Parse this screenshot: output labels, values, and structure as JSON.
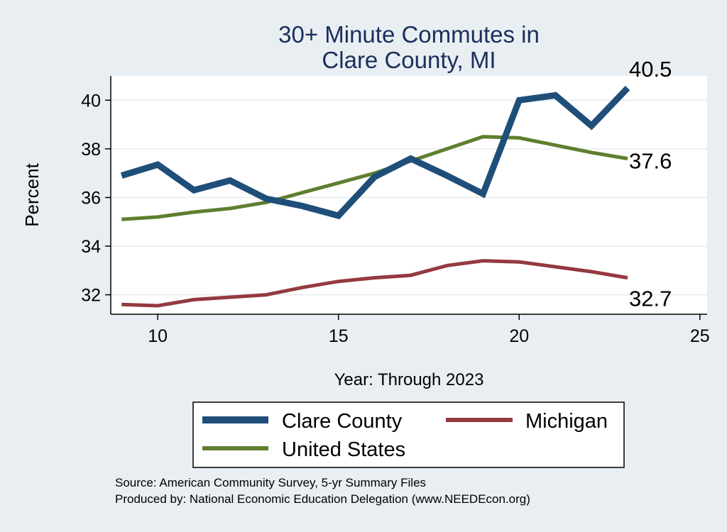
{
  "chart_data": {
    "type": "line",
    "title": [
      "30+ Minute Commutes in",
      "Clare County, MI"
    ],
    "xlabel": "Year: Through 2023",
    "ylabel": "Percent",
    "xlim": [
      8.7,
      25.2
    ],
    "ylim": [
      31.2,
      41.0
    ],
    "xticks": [
      10,
      15,
      20,
      25
    ],
    "yticks": [
      32,
      34,
      36,
      38,
      40
    ],
    "grid": true,
    "legend_position": "bottom",
    "x": [
      9,
      10,
      11,
      12,
      13,
      14,
      15,
      16,
      17,
      18,
      19,
      20,
      21,
      22,
      23
    ],
    "series": [
      {
        "name": "Clare County",
        "color": "#1f4e79",
        "width": "thick",
        "values": [
          36.9,
          37.35,
          36.3,
          36.7,
          35.95,
          35.65,
          35.25,
          36.85,
          37.6,
          36.9,
          36.15,
          40.0,
          40.2,
          38.95,
          40.5
        ],
        "end_label": "40.5"
      },
      {
        "name": "Michigan",
        "color": "#943a3f",
        "width": "medium",
        "values": [
          31.6,
          31.55,
          31.8,
          31.9,
          32.0,
          32.3,
          32.55,
          32.7,
          32.8,
          33.2,
          33.4,
          33.35,
          33.15,
          32.95,
          32.7
        ],
        "end_label": "32.7"
      },
      {
        "name": "United States",
        "color": "#5e7f2f",
        "width": "medium",
        "values": [
          35.1,
          35.2,
          35.4,
          35.55,
          35.8,
          36.2,
          36.6,
          37.0,
          37.5,
          38.0,
          38.5,
          38.45,
          38.15,
          37.85,
          37.6
        ],
        "end_label": "37.6"
      }
    ],
    "legend": [
      {
        "name": "Clare County"
      },
      {
        "name": "Michigan"
      },
      {
        "name": "United States"
      }
    ],
    "notes": [
      "Source: American Community Survey, 5-yr Summary Files",
      "Produced by: National Economic Education Delegation (www.NEEDEcon.org)"
    ]
  }
}
